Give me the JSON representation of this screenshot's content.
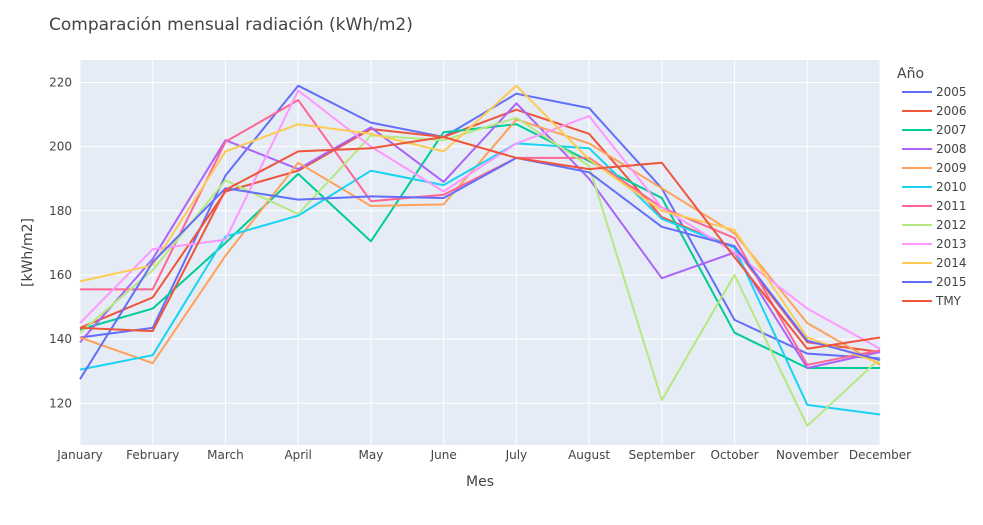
{
  "chart_data": {
    "type": "line",
    "title": "Comparación mensual radiación (kWh/m2)",
    "xlabel": "Mes",
    "ylabel": "[kWh/m2]",
    "legend_title": "Año",
    "legend_position": "right",
    "grid": true,
    "ylim": [
      107,
      227
    ],
    "yticks": [
      120,
      140,
      160,
      180,
      200,
      220
    ],
    "categories": [
      "January",
      "February",
      "March",
      "April",
      "May",
      "June",
      "July",
      "August",
      "September",
      "October",
      "November",
      "December"
    ],
    "series": [
      {
        "name": "2005",
        "color": "#636efa",
        "values": [
          140.5,
          143.5,
          191.0,
          219.0,
          207.5,
          203.0,
          216.5,
          212.0,
          187.0,
          146.0,
          135.5,
          134.0
        ]
      },
      {
        "name": "2006",
        "color": "#ef553b",
        "values": [
          143.5,
          153.0,
          186.0,
          192.5,
          205.5,
          203.0,
          211.5,
          204.0,
          178.0,
          168.5,
          139.0,
          136.0
        ]
      },
      {
        "name": "2007",
        "color": "#00cc96",
        "values": [
          143.0,
          149.5,
          170.0,
          191.5,
          170.5,
          204.5,
          207.0,
          195.5,
          184.0,
          142.0,
          131.0,
          131.0
        ]
      },
      {
        "name": "2008",
        "color": "#ab63fa",
        "values": [
          139.0,
          165.0,
          202.0,
          193.0,
          206.0,
          189.0,
          213.5,
          190.0,
          159.0,
          167.0,
          131.0,
          136.0
        ]
      },
      {
        "name": "2009",
        "color": "#ffa15a",
        "values": [
          140.5,
          132.5,
          166.0,
          195.0,
          181.5,
          182.0,
          208.5,
          201.0,
          187.0,
          173.0,
          145.0,
          132.0
        ]
      },
      {
        "name": "2010",
        "color": "#19d3f3",
        "values": [
          130.5,
          135.0,
          172.0,
          178.5,
          192.5,
          188.0,
          201.0,
          199.5,
          177.5,
          168.5,
          119.5,
          116.5
        ]
      },
      {
        "name": "2011",
        "color": "#ff6692",
        "values": [
          155.5,
          155.5,
          201.5,
          214.5,
          183.0,
          185.0,
          196.5,
          196.5,
          181.0,
          171.5,
          132.0,
          136.5
        ]
      },
      {
        "name": "2012",
        "color": "#b6e880",
        "values": [
          142.0,
          161.5,
          189.5,
          179.0,
          203.5,
          202.0,
          209.0,
          194.0,
          121.0,
          160.0,
          113.0,
          134.0
        ]
      },
      {
        "name": "2013",
        "color": "#ff97ff",
        "values": [
          145.0,
          168.0,
          171.0,
          217.5,
          200.0,
          186.0,
          201.0,
          209.5,
          181.0,
          167.0,
          149.5,
          137.0
        ]
      },
      {
        "name": "2014",
        "color": "#fecb52",
        "values": [
          158.0,
          163.0,
          198.5,
          207.0,
          204.0,
          198.5,
          219.0,
          196.0,
          180.0,
          174.0,
          140.5,
          132.5
        ]
      },
      {
        "name": "2015",
        "color": "#636efa",
        "values": [
          127.5,
          164.0,
          187.0,
          183.5,
          184.5,
          184.0,
          196.5,
          192.0,
          175.0,
          169.0,
          139.5,
          133.5
        ]
      },
      {
        "name": "TMY",
        "color": "#ef553b",
        "values": [
          143.5,
          142.5,
          186.5,
          198.5,
          199.5,
          203.0,
          196.5,
          193.0,
          195.0,
          165.5,
          137.0,
          140.5
        ]
      }
    ]
  }
}
